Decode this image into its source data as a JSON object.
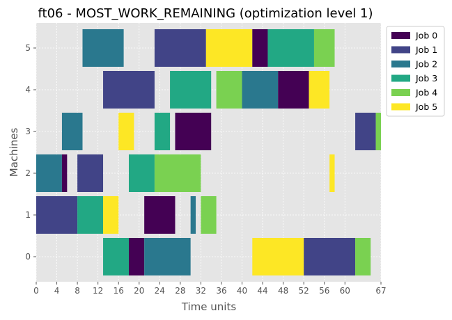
{
  "chart_data": {
    "type": "gantt",
    "title": "ft06 - MOST_WORK_REMAINING (optimization level 1)",
    "xlabel": "Time units",
    "ylabel": "Machines",
    "xlim": [
      0,
      67
    ],
    "ylim": [
      -0.6,
      5.6
    ],
    "xticks": [
      0,
      4,
      8,
      12,
      16,
      20,
      24,
      28,
      32,
      36,
      40,
      44,
      48,
      52,
      56,
      60,
      67
    ],
    "yticks": [
      0,
      1,
      2,
      3,
      4,
      5
    ],
    "grid": true,
    "legend_position": "upper right, outside plot",
    "jobs": [
      {
        "name": "Job 0",
        "color": "#440154"
      },
      {
        "name": "Job 1",
        "color": "#414487"
      },
      {
        "name": "Job 2",
        "color": "#2a788e"
      },
      {
        "name": "Job 3",
        "color": "#22a884"
      },
      {
        "name": "Job 4",
        "color": "#7ad151"
      },
      {
        "name": "Job 5",
        "color": "#fde725"
      }
    ],
    "tasks": [
      {
        "machine": 0,
        "job": 3,
        "start": 13,
        "end": 18
      },
      {
        "machine": 0,
        "job": 0,
        "start": 18,
        "end": 21
      },
      {
        "machine": 0,
        "job": 2,
        "start": 21,
        "end": 30
      },
      {
        "machine": 0,
        "job": 5,
        "start": 42,
        "end": 52
      },
      {
        "machine": 0,
        "job": 1,
        "start": 52,
        "end": 62
      },
      {
        "machine": 0,
        "job": 4,
        "start": 62,
        "end": 65
      },
      {
        "machine": 1,
        "job": 1,
        "start": 0,
        "end": 8
      },
      {
        "machine": 1,
        "job": 3,
        "start": 8,
        "end": 13
      },
      {
        "machine": 1,
        "job": 5,
        "start": 13,
        "end": 16
      },
      {
        "machine": 1,
        "job": 0,
        "start": 21,
        "end": 27
      },
      {
        "machine": 1,
        "job": 2,
        "start": 30,
        "end": 31
      },
      {
        "machine": 1,
        "job": 4,
        "start": 32,
        "end": 35
      },
      {
        "machine": 2,
        "job": 2,
        "start": 0,
        "end": 5
      },
      {
        "machine": 2,
        "job": 0,
        "start": 5,
        "end": 6
      },
      {
        "machine": 2,
        "job": 1,
        "start": 8,
        "end": 13
      },
      {
        "machine": 2,
        "job": 3,
        "start": 18,
        "end": 23
      },
      {
        "machine": 2,
        "job": 4,
        "start": 23,
        "end": 32
      },
      {
        "machine": 2,
        "job": 5,
        "start": 57,
        "end": 58
      },
      {
        "machine": 3,
        "job": 2,
        "start": 5,
        "end": 9
      },
      {
        "machine": 3,
        "job": 5,
        "start": 16,
        "end": 19
      },
      {
        "machine": 3,
        "job": 3,
        "start": 23,
        "end": 26
      },
      {
        "machine": 3,
        "job": 0,
        "start": 27,
        "end": 34
      },
      {
        "machine": 3,
        "job": 1,
        "start": 62,
        "end": 66
      },
      {
        "machine": 3,
        "job": 4,
        "start": 66,
        "end": 67
      },
      {
        "machine": 4,
        "job": 1,
        "start": 13,
        "end": 23
      },
      {
        "machine": 4,
        "job": 3,
        "start": 26,
        "end": 34
      },
      {
        "machine": 4,
        "job": 4,
        "start": 35,
        "end": 40
      },
      {
        "machine": 4,
        "job": 2,
        "start": 40,
        "end": 47
      },
      {
        "machine": 4,
        "job": 0,
        "start": 47,
        "end": 53
      },
      {
        "machine": 4,
        "job": 5,
        "start": 53,
        "end": 57
      },
      {
        "machine": 5,
        "job": 2,
        "start": 9,
        "end": 17
      },
      {
        "machine": 5,
        "job": 1,
        "start": 23,
        "end": 33
      },
      {
        "machine": 5,
        "job": 5,
        "start": 33,
        "end": 42
      },
      {
        "machine": 5,
        "job": 0,
        "start": 42,
        "end": 45
      },
      {
        "machine": 5,
        "job": 3,
        "start": 45,
        "end": 54
      },
      {
        "machine": 5,
        "job": 4,
        "start": 54,
        "end": 58
      }
    ]
  }
}
